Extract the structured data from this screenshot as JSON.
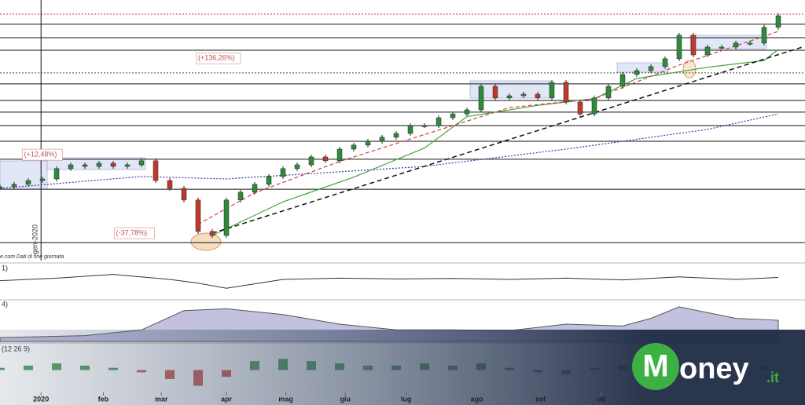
{
  "chart_data": {
    "type": "candlestick",
    "x": [
      0,
      1,
      2,
      3,
      4,
      5,
      6,
      7,
      8,
      9,
      10,
      11,
      12,
      13,
      14,
      15,
      16,
      17,
      18,
      19,
      20,
      21,
      22,
      23,
      24,
      25,
      26,
      27,
      28,
      29,
      30,
      31,
      32,
      33,
      34,
      35,
      36,
      37,
      38,
      39,
      40,
      41,
      42,
      43,
      44,
      45,
      46,
      47,
      48,
      49,
      50,
      51,
      52,
      53,
      54,
      55
    ],
    "values": [
      88.7,
      89.8,
      91.5,
      92.2,
      96.8,
      98.5,
      97.8,
      99.2,
      97.8,
      98.5,
      100.3,
      91.5,
      88,
      82.8,
      68.8,
      67,
      82.8,
      86.3,
      89.8,
      93.3,
      96.8,
      98.5,
      102,
      100.3,
      105.5,
      107.3,
      109,
      110.8,
      112.5,
      116,
      116,
      119.5,
      121.2,
      123,
      133.5,
      128.3,
      129.3,
      130,
      128.3,
      135.3,
      126.5,
      121.2,
      128.3,
      133.5,
      138.8,
      140.5,
      142.3,
      145.8,
      156.3,
      147.5,
      151,
      151,
      152.8,
      152.8,
      159.8,
      165
    ],
    "up_color": "#2e8b3a",
    "down_color": "#c0392b",
    "xlim": [
      0,
      56
    ],
    "ylim": [
      60,
      172
    ],
    "xticks": [
      {
        "value": 2.9,
        "label": "2020"
      },
      {
        "value": 7.3,
        "label": "feb"
      },
      {
        "value": 11.4,
        "label": "mar"
      },
      {
        "value": 16,
        "label": "apr"
      },
      {
        "value": 20.2,
        "label": "mag"
      },
      {
        "value": 24.4,
        "label": "giu"
      },
      {
        "value": 28.7,
        "label": "lug"
      },
      {
        "value": 33.7,
        "label": "ago"
      },
      {
        "value": 38.2,
        "label": "set"
      },
      {
        "value": 42.5,
        "label": "ott"
      }
    ],
    "levels": [
      161.2,
      155.2,
      149.6,
      134.6,
      127.2,
      122,
      116,
      109,
      101,
      87.6,
      63.8
    ],
    "dotted_levels": [
      139.5
    ],
    "resistance": 165.7,
    "trendline": {
      "x": [
        15,
        56.7
      ],
      "values": [
        68,
        151
      ],
      "color": "#111"
    },
    "overlays": [
      {
        "color": "#3a3aa0",
        "style": "dotted",
        "x": [
          0,
          10,
          16,
          30,
          40,
          50,
          55
        ],
        "values": [
          88,
          93.3,
          92.2,
          97.8,
          105.5,
          114.3,
          121.2
        ]
      },
      {
        "color": "#3aa83a",
        "style": "solid",
        "x": [
          15,
          20,
          25,
          30,
          33,
          38,
          42,
          45,
          50,
          54,
          55
        ],
        "values": [
          67,
          82,
          93,
          106,
          120,
          125,
          128,
          137,
          142,
          145,
          150
        ]
      },
      {
        "color": "#d04040",
        "style": "dashed",
        "x": [
          14,
          18,
          24,
          30,
          36,
          42,
          48,
          55
        ],
        "values": [
          72,
          86,
          100,
          112,
          124,
          128,
          143,
          158
        ]
      }
    ],
    "annotations": [
      {
        "text": "(+136,26%)",
        "x": 14,
        "y": 146
      },
      {
        "text": "(+12,48%)",
        "x": 1.7,
        "y": 103
      },
      {
        "text": "(-37,78%)",
        "x": 8.2,
        "y": 68
      }
    ],
    "date_marker": {
      "x": 2.9,
      "label": "gen-2020"
    },
    "source": "e.com  Dati di fine giornata",
    "panels": [
      {
        "label": "1)",
        "kind": "line",
        "color": "#333",
        "ylim": [
          0,
          100
        ],
        "x": [
          0,
          4,
          8,
          12,
          14,
          16,
          20,
          24,
          28,
          32,
          36,
          40,
          44,
          48,
          52,
          55
        ],
        "values": [
          45,
          55,
          70,
          50,
          35,
          15,
          50,
          55,
          52,
          54,
          50,
          55,
          48,
          60,
          50,
          58
        ]
      },
      {
        "label": "4)",
        "kind": "area",
        "color": "#9a9ac8",
        "ylim": [
          0,
          100
        ],
        "x": [
          0,
          6,
          10,
          13,
          16,
          20,
          24,
          28,
          32,
          36,
          40,
          44,
          46,
          48,
          52,
          55
        ],
        "values": [
          10,
          15,
          30,
          80,
          85,
          70,
          45,
          30,
          30,
          28,
          45,
          40,
          60,
          90,
          60,
          55
        ]
      },
      {
        "label": "(12 26 9)",
        "kind": "histogram",
        "color": "#2e8b3a",
        "neg_color": "#c0392b",
        "ylim": [
          -10,
          10
        ],
        "x": [
          0,
          2,
          4,
          6,
          8,
          10,
          12,
          14,
          16,
          18,
          20,
          22,
          24,
          26,
          28,
          30,
          32,
          34,
          36,
          38,
          40,
          42,
          44,
          46,
          48,
          50,
          52,
          54
        ],
        "values": [
          1,
          2,
          3,
          2,
          1,
          -1,
          -4,
          -7,
          -3,
          4,
          5,
          4,
          3,
          2,
          2,
          3,
          2,
          3,
          1,
          -1,
          -2,
          1,
          2,
          2,
          3,
          -1,
          1,
          2
        ]
      }
    ]
  }
}
